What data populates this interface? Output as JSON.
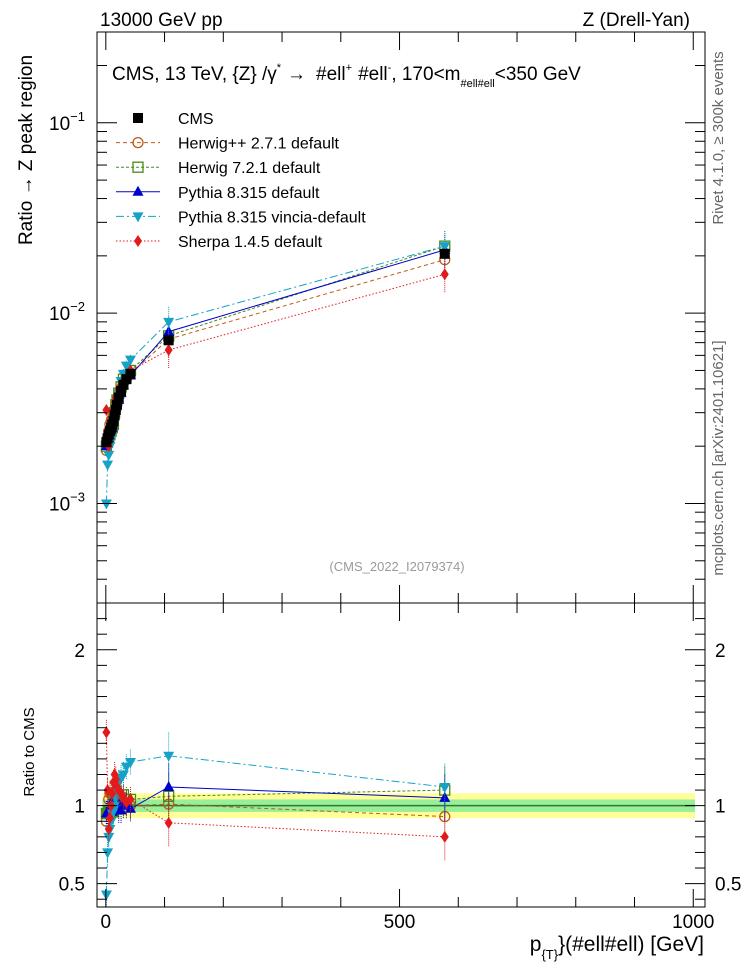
{
  "header": {
    "left": "13000 GeV pp",
    "right": "Z (Drell-Yan)"
  },
  "side_labels": {
    "rivet": "Rivet 4.1.0, ≥ 300k events",
    "mcplots": "mcplots.cern.ch [arXiv:2401.10621]"
  },
  "chart_data": {
    "type": "line",
    "title": "CMS, 13 TeV, {Z} /γ* → #ell⁺ #ell⁻, 170<m_{#ell#ell}<350 GeV",
    "title_parts": {
      "main": "CMS, 13 TeV, {Z} /γ",
      "star": "*",
      "arrow": "→",
      "lep": "#ell",
      "plus": "+",
      "lep2": "#ell",
      "minus": "-",
      "mass": ", 170<m",
      "mass_sub": "#ell#ell",
      "mass_end": "<350 GeV"
    },
    "watermark": "(CMS_2022_I2079374)",
    "ylabel": "Ratio → Z peak region",
    "ratio_ylabel": "Ratio to CMS",
    "xlabel_parts": {
      "p": "p",
      "sub": "{T}",
      "rest": "}(#ell#ell) [GeV]"
    },
    "xlim": [
      -15,
      1020
    ],
    "ylim": [
      0.0003,
      0.3
    ],
    "yscale": "log",
    "ratio_ylim": [
      0.35,
      2.3
    ],
    "yticks": [
      {
        "value": 0.1,
        "base": "10",
        "exp": "−1"
      },
      {
        "value": 0.01,
        "base": "10",
        "exp": "−2"
      },
      {
        "value": 0.001,
        "base": "10",
        "exp": "−3"
      }
    ],
    "xticks": [
      {
        "value": 0,
        "label": "0"
      },
      {
        "value": 500,
        "label": "500"
      },
      {
        "value": 1000,
        "label": "1000"
      }
    ],
    "ratio_yticks": [
      {
        "value": 0.5,
        "label": "0.5"
      },
      {
        "value": 1,
        "label": "1"
      },
      {
        "value": 2,
        "label": "2"
      }
    ],
    "x": [
      1,
      3,
      5,
      7,
      9,
      11,
      13,
      15,
      17,
      19,
      22,
      26,
      30,
      35,
      42,
      107,
      577
    ],
    "cms": {
      "name": "CMS",
      "values": [
        0.0021,
        0.0022,
        0.0023,
        0.0024,
        0.0025,
        0.0026,
        0.0027,
        0.0029,
        0.0031,
        0.0033,
        0.0036,
        0.0039,
        0.0042,
        0.0045,
        0.0048,
        0.0072,
        0.0205
      ],
      "band_ratio": [
        0.96,
        1.04
      ],
      "band_outer": [
        0.92,
        1.08
      ]
    },
    "series": [
      {
        "name": "Herwig++ 2.7.1 default",
        "color": "#bf5b17",
        "dash": "4,3",
        "marker": "circle-open",
        "values": [
          0.0019,
          0.0021,
          0.0024,
          0.0026,
          0.0027,
          0.0028,
          0.0029,
          0.0031,
          0.0033,
          0.0035,
          0.0037,
          0.004,
          0.0043,
          0.0046,
          0.0048,
          0.0073,
          0.0191
        ],
        "ratio": [
          0.9,
          0.95,
          1.04,
          1.08,
          1.08,
          1.08,
          1.07,
          1.07,
          1.06,
          1.06,
          1.03,
          1.03,
          1.02,
          1.02,
          1.0,
          1.01,
          0.93
        ]
      },
      {
        "name": "Herwig 7.2.1 default",
        "color": "#4a8a16",
        "dash": "3,2",
        "marker": "square-open",
        "values": [
          0.002,
          0.0021,
          0.0022,
          0.0023,
          0.0024,
          0.0025,
          0.0026,
          0.003,
          0.0033,
          0.0035,
          0.0038,
          0.0041,
          0.0045,
          0.0047,
          0.005,
          0.0076,
          0.0225
        ],
        "ratio": [
          0.95,
          0.95,
          0.96,
          0.96,
          0.96,
          0.96,
          0.96,
          1.03,
          1.06,
          1.06,
          1.06,
          1.05,
          1.07,
          1.04,
          1.04,
          1.06,
          1.1
        ]
      },
      {
        "name": "Pythia 8.315 default",
        "color": "#0000cc",
        "dash": "",
        "marker": "triangle-up",
        "values": [
          0.002,
          0.0021,
          0.0022,
          0.0023,
          0.0024,
          0.0025,
          0.0028,
          0.003,
          0.0032,
          0.0034,
          0.0035,
          0.0038,
          0.0042,
          0.0045,
          0.0047,
          0.008,
          0.0215
        ],
        "ratio": [
          0.95,
          0.95,
          0.96,
          0.96,
          0.96,
          0.96,
          1.04,
          1.03,
          1.03,
          1.03,
          0.97,
          0.97,
          1.0,
          1.0,
          0.98,
          1.12,
          1.05
        ]
      },
      {
        "name": "Pythia 8.315 vincia-default",
        "color": "#14a3c7",
        "dash": "8,3,2,3",
        "marker": "triangle-down",
        "values": [
          0.001,
          0.0016,
          0.0018,
          0.002,
          0.0022,
          0.0024,
          0.0026,
          0.0029,
          0.0031,
          0.0034,
          0.0038,
          0.0044,
          0.0048,
          0.0053,
          0.0057,
          0.009,
          0.0225
        ],
        "ratio": [
          0.43,
          0.7,
          0.8,
          0.85,
          0.9,
          0.95,
          0.97,
          1.0,
          1.05,
          1.1,
          1.15,
          1.18,
          1.2,
          1.25,
          1.28,
          1.32,
          1.12
        ]
      },
      {
        "name": "Sherpa 1.4.5 default",
        "color": "#e31a1c",
        "dash": "1.5,2",
        "marker": "diamond",
        "values": [
          0.0031,
          0.0024,
          0.002,
          0.0022,
          0.0025,
          0.0028,
          0.0031,
          0.0034,
          0.0036,
          0.0037,
          0.004,
          0.0042,
          0.0044,
          0.0046,
          0.005,
          0.0064,
          0.016
        ],
        "ratio": [
          1.47,
          1.1,
          0.85,
          0.92,
          1.0,
          1.08,
          1.15,
          1.2,
          1.17,
          1.12,
          1.1,
          1.08,
          1.05,
          1.02,
          1.04,
          0.89,
          0.8
        ]
      }
    ]
  }
}
